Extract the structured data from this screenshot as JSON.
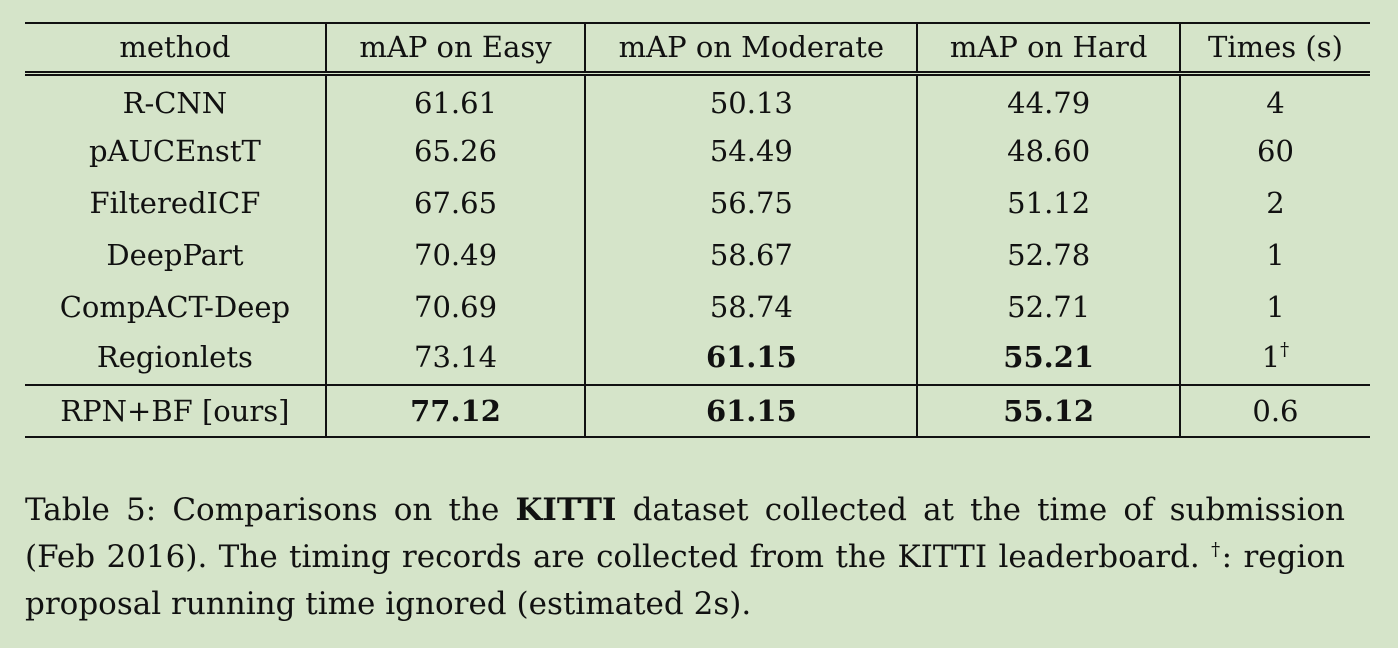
{
  "table": {
    "headers": [
      "method",
      "mAP on Easy",
      "mAP on Moderate",
      "mAP on Hard",
      "Times (s)"
    ],
    "rows": [
      {
        "method": "R-CNN",
        "easy": "61.61",
        "moderate": "50.13",
        "hard": "44.79",
        "time": "4"
      },
      {
        "method": "pAUCEnstT",
        "easy": "65.26",
        "moderate": "54.49",
        "hard": "48.60",
        "time": "60"
      },
      {
        "method": "FilteredICF",
        "easy": "67.65",
        "moderate": "56.75",
        "hard": "51.12",
        "time": "2"
      },
      {
        "method": "DeepPart",
        "easy": "70.49",
        "moderate": "58.67",
        "hard": "52.78",
        "time": "1"
      },
      {
        "method": "CompACT-Deep",
        "easy": "70.69",
        "moderate": "58.74",
        "hard": "52.71",
        "time": "1"
      },
      {
        "method": "Regionlets",
        "easy": "73.14",
        "moderate": "61.15",
        "hard": "55.21",
        "time": "1",
        "time_mark": "†"
      }
    ],
    "ours": {
      "method": "RPN+BF [ours]",
      "easy": "77.12",
      "moderate": "61.15",
      "hard": "55.12",
      "time": "0.6"
    }
  },
  "caption": {
    "part1": "Table 5: Comparisons on the ",
    "keyword": "KITTI",
    "part2": " dataset collected at the time of submission (Feb 2016). The timing records are collected from the KITTI leaderboard. ",
    "mark": "†",
    "part3": ": region proposal running time ignored (estimated 2s)."
  }
}
